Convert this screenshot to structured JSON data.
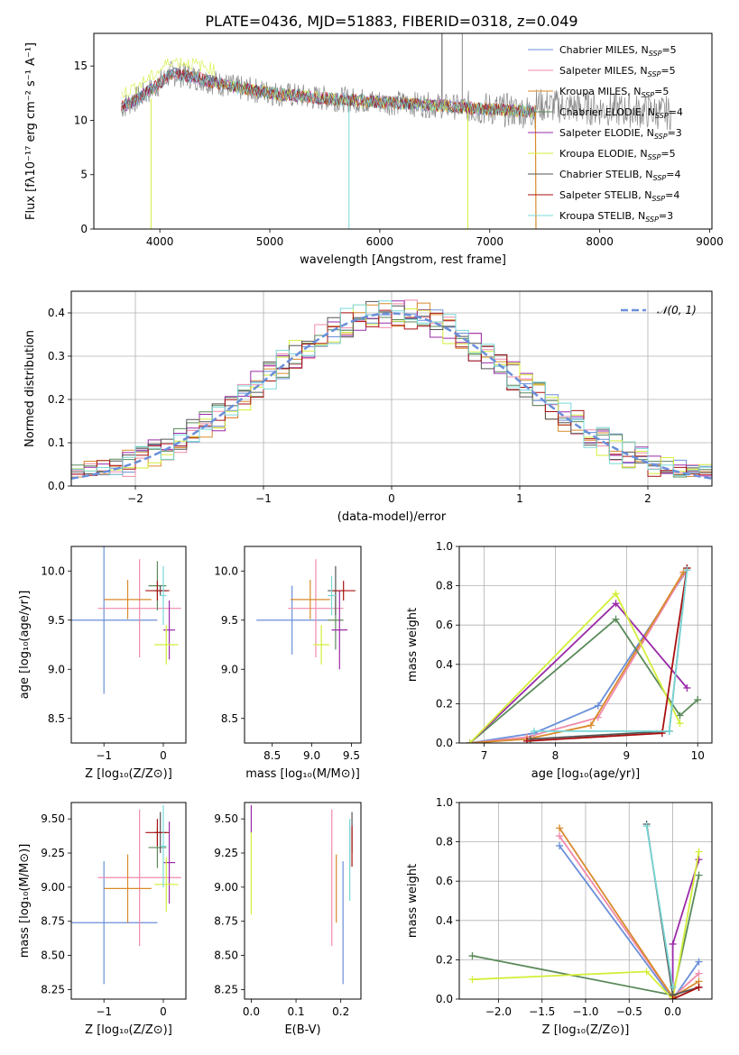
{
  "figure_title": "PLATE=0436, MJD=51883, FIBERID=0318, z=0.049",
  "colors": {
    "chabrier_miles": "#6a8fd9",
    "salpeter_miles": "#f08aaa",
    "kroupa_miles": "#d98a2b",
    "chabrier_elodie": "#5a8a5a",
    "salpeter_elodie": "#9a2aa8",
    "kroupa_elodie": "#d4ee3a",
    "chabrier_stelib": "#555555",
    "salpeter_stelib": "#aa1111",
    "kroupa_stelib": "#7ad8d8",
    "data_gray": "#888888",
    "gauss_line": "#6a8fd9"
  },
  "chart_data": [
    {
      "id": "spectrum",
      "type": "line",
      "xlabel": "wavelength [Angstrom, rest frame]",
      "ylabel": "Flux [fλ10⁻¹⁷ erg cm⁻² s⁻¹ A⁻¹]",
      "xlim": [
        3400,
        9020
      ],
      "ylim": [
        0,
        18
      ],
      "xticks": [
        "4000",
        "5000",
        "6000",
        "7000",
        "8000",
        "9000"
      ],
      "yticks": [
        "0",
        "5",
        "10",
        "15"
      ],
      "legend_position": "top-right",
      "legend": [
        {
          "pre": "Chabrier MILES, N",
          "sub": "SSP",
          "post": "=5",
          "color_key": "chabrier_miles"
        },
        {
          "pre": "Salpeter MILES, N",
          "sub": "SSP",
          "post": "=5",
          "color_key": "salpeter_miles"
        },
        {
          "pre": "Kroupa MILES, N",
          "sub": "SSP",
          "post": "=5",
          "color_key": "kroupa_miles"
        },
        {
          "pre": "Chabrier ELODIE, N",
          "sub": "SSP",
          "post": "=4",
          "color_key": "chabrier_elodie"
        },
        {
          "pre": "Salpeter ELODIE, N",
          "sub": "SSP",
          "post": "=3",
          "color_key": "salpeter_elodie"
        },
        {
          "pre": "Kroupa ELODIE, N",
          "sub": "SSP",
          "post": "=5",
          "color_key": "kroupa_elodie"
        },
        {
          "pre": "Chabrier STELIB, N",
          "sub": "SSP",
          "post": "=4",
          "color_key": "chabrier_stelib"
        },
        {
          "pre": "Salpeter STELIB, N",
          "sub": "SSP",
          "post": "=4",
          "color_key": "salpeter_stelib"
        },
        {
          "pre": "Kroupa STELIB, N",
          "sub": "SSP",
          "post": "=3",
          "color_key": "kroupa_stelib"
        }
      ],
      "continuum": [
        [
          3650,
          11.2
        ],
        [
          3800,
          12.0
        ],
        [
          3950,
          13.0
        ],
        [
          4100,
          14.3
        ],
        [
          4300,
          14.0
        ],
        [
          4500,
          13.5
        ],
        [
          4700,
          13.0
        ],
        [
          4900,
          12.7
        ],
        [
          5100,
          12.4
        ],
        [
          5400,
          12.1
        ],
        [
          5700,
          11.9
        ],
        [
          6000,
          11.7
        ],
        [
          6300,
          11.5
        ],
        [
          6600,
          11.3
        ],
        [
          6900,
          11.1
        ],
        [
          7200,
          10.9
        ],
        [
          7420,
          10.8
        ]
      ],
      "data_range": [
        3650,
        8650
      ],
      "model_end": 7420
    },
    {
      "id": "residuals",
      "type": "bar",
      "xlabel": "(data-model)/error",
      "ylabel": "Normed distribution",
      "xlim": [
        -2.5,
        2.5
      ],
      "ylim": [
        0,
        0.45
      ],
      "xticks": [
        "−2",
        "−1",
        "0",
        "1",
        "2"
      ],
      "yticks": [
        "0.0",
        "0.1",
        "0.2",
        "0.3",
        "0.4"
      ],
      "grid": true,
      "legend_position": "top-right",
      "legend": [
        {
          "label": "𝒩(0, 1)",
          "color_key": "gauss_line"
        }
      ],
      "bin_edges_start": -2.5,
      "bin_width": 0.1,
      "bins": 50
    },
    {
      "id": "age-vs-Z",
      "type": "scatter",
      "xlabel": "Z [log₁₀(Z/Z⊙)]",
      "ylabel": "age  [log₁₀(age/yr)]",
      "xlim": [
        -1.55,
        0.38
      ],
      "ylim": [
        8.25,
        10.25
      ],
      "xticks": [
        "−1",
        "0"
      ],
      "yticks": [
        "8.5",
        "9.0",
        "9.5",
        "10.0"
      ],
      "points": [
        {
          "x": -1.0,
          "y": 9.5,
          "xerr": 0.9,
          "yerr": 0.75,
          "color_key": "chabrier_miles"
        },
        {
          "x": -0.4,
          "y": 9.62,
          "xerr": 0.7,
          "yerr": 0.5,
          "color_key": "salpeter_miles"
        },
        {
          "x": -0.6,
          "y": 9.71,
          "xerr": 0.4,
          "yerr": 0.2,
          "color_key": "kroupa_miles"
        },
        {
          "x": -0.1,
          "y": 9.85,
          "xerr": 0.15,
          "yerr": 0.25,
          "color_key": "chabrier_elodie"
        },
        {
          "x": 0.1,
          "y": 9.4,
          "xerr": 0.1,
          "yerr": 0.3,
          "color_key": "salpeter_elodie"
        },
        {
          "x": 0.05,
          "y": 9.25,
          "xerr": 0.2,
          "yerr": 0.2,
          "color_key": "kroupa_elodie"
        },
        {
          "x": -0.05,
          "y": 9.8,
          "xerr": 0.1,
          "yerr": 0.05,
          "color_key": "chabrier_stelib"
        },
        {
          "x": -0.1,
          "y": 9.8,
          "xerr": 0.2,
          "yerr": 0.1,
          "color_key": "salpeter_stelib"
        },
        {
          "x": 0.0,
          "y": 9.75,
          "xerr": 0.05,
          "yerr": 0.3,
          "color_key": "kroupa_stelib"
        }
      ]
    },
    {
      "id": "age-vs-mass",
      "type": "scatter",
      "xlabel": "mass [log₁₀(M/M⊙)]",
      "ylabel": "",
      "xlim": [
        8.15,
        9.62
      ],
      "ylim": [
        8.25,
        10.25
      ],
      "xticks": [
        "8.5",
        "9.0",
        "9.5"
      ],
      "yticks": [
        "8.5",
        "9.0",
        "9.5",
        "10.0"
      ],
      "points": [
        {
          "x": 8.75,
          "y": 9.5,
          "xerr": 0.45,
          "yerr": 0.35,
          "color_key": "chabrier_miles"
        },
        {
          "x": 9.05,
          "y": 9.62,
          "xerr": 0.35,
          "yerr": 0.5,
          "color_key": "salpeter_miles"
        },
        {
          "x": 8.98,
          "y": 9.71,
          "xerr": 0.25,
          "yerr": 0.2,
          "color_key": "kroupa_miles"
        },
        {
          "x": 9.3,
          "y": 9.5,
          "xerr": 0.1,
          "yerr": 0.3,
          "color_key": "chabrier_elodie"
        },
        {
          "x": 9.35,
          "y": 9.4,
          "xerr": 0.1,
          "yerr": 0.4,
          "color_key": "salpeter_elodie"
        },
        {
          "x": 9.12,
          "y": 9.25,
          "xerr": 0.1,
          "yerr": 0.2,
          "color_key": "kroupa_elodie"
        },
        {
          "x": 9.3,
          "y": 9.8,
          "xerr": 0.1,
          "yerr": 0.25,
          "color_key": "chabrier_stelib"
        },
        {
          "x": 9.4,
          "y": 9.8,
          "xerr": 0.15,
          "yerr": 0.1,
          "color_key": "salpeter_stelib"
        },
        {
          "x": 9.25,
          "y": 9.75,
          "xerr": 0.05,
          "yerr": 0.2,
          "color_key": "kroupa_stelib"
        }
      ]
    },
    {
      "id": "weight-vs-age",
      "type": "line",
      "xlabel": "age  [log₁₀(age/yr)]",
      "ylabel": "mass weight",
      "xlim": [
        6.65,
        10.2
      ],
      "ylim": [
        0,
        1
      ],
      "xticks": [
        "7",
        "8",
        "9",
        "10"
      ],
      "yticks": [
        "0.0",
        "0.2",
        "0.4",
        "0.6",
        "0.8",
        "1.0"
      ],
      "grid": true,
      "series": [
        {
          "color_key": "chabrier_miles",
          "points": [
            [
              6.8,
              0.0
            ],
            [
              7.7,
              0.05
            ],
            [
              8.6,
              0.19
            ],
            [
              9.85,
              0.88
            ]
          ]
        },
        {
          "color_key": "salpeter_miles",
          "points": [
            [
              6.8,
              0.0
            ],
            [
              7.6,
              0.03
            ],
            [
              8.6,
              0.13
            ],
            [
              9.8,
              0.86
            ]
          ]
        },
        {
          "color_key": "kroupa_miles",
          "points": [
            [
              6.8,
              0.0
            ],
            [
              7.6,
              0.02
            ],
            [
              8.5,
              0.09
            ],
            [
              9.8,
              0.87
            ]
          ]
        },
        {
          "color_key": "chabrier_elodie",
          "points": [
            [
              6.8,
              0.0
            ],
            [
              8.85,
              0.63
            ],
            [
              9.75,
              0.14
            ],
            [
              10.0,
              0.22
            ]
          ]
        },
        {
          "color_key": "salpeter_elodie",
          "points": [
            [
              6.8,
              0.0
            ],
            [
              8.85,
              0.71
            ],
            [
              9.85,
              0.28
            ]
          ]
        },
        {
          "color_key": "kroupa_elodie",
          "points": [
            [
              6.8,
              0.0
            ],
            [
              8.85,
              0.76
            ],
            [
              9.75,
              0.1
            ]
          ]
        },
        {
          "color_key": "chabrier_stelib",
          "points": [
            [
              7.65,
              0.02
            ],
            [
              9.6,
              0.06
            ],
            [
              9.85,
              0.89
            ]
          ]
        },
        {
          "color_key": "salpeter_stelib",
          "points": [
            [
              7.6,
              0.01
            ],
            [
              9.5,
              0.05
            ],
            [
              9.85,
              0.89
            ]
          ]
        },
        {
          "color_key": "kroupa_stelib",
          "points": [
            [
              7.7,
              0.06
            ],
            [
              9.6,
              0.06
            ],
            [
              9.85,
              0.88
            ]
          ]
        }
      ]
    },
    {
      "id": "mass-vs-Z",
      "type": "scatter",
      "xlabel": "Z [log₁₀(Z/Z⊙)]",
      "ylabel": "mass [log₁₀(M/M⊙)]",
      "xlim": [
        -1.55,
        0.38
      ],
      "ylim": [
        8.18,
        9.62
      ],
      "xticks": [
        "−1",
        "0"
      ],
      "yticks": [
        "8.25",
        "8.50",
        "8.75",
        "9.00",
        "9.25",
        "9.50"
      ],
      "points": [
        {
          "x": -1.0,
          "y": 8.74,
          "xerr": 0.9,
          "yerr": 0.45,
          "color_key": "chabrier_miles"
        },
        {
          "x": -0.4,
          "y": 9.07,
          "xerr": 0.7,
          "yerr": 0.5,
          "color_key": "salpeter_miles"
        },
        {
          "x": -0.6,
          "y": 8.99,
          "xerr": 0.4,
          "yerr": 0.25,
          "color_key": "kroupa_miles"
        },
        {
          "x": -0.1,
          "y": 9.29,
          "xerr": 0.15,
          "yerr": 0.15,
          "color_key": "chabrier_elodie"
        },
        {
          "x": 0.1,
          "y": 9.18,
          "xerr": 0.1,
          "yerr": 0.3,
          "color_key": "salpeter_elodie"
        },
        {
          "x": 0.05,
          "y": 9.02,
          "xerr": 0.2,
          "yerr": 0.2,
          "color_key": "kroupa_elodie"
        },
        {
          "x": -0.05,
          "y": 9.4,
          "xerr": 0.1,
          "yerr": 0.15,
          "color_key": "chabrier_stelib"
        },
        {
          "x": -0.1,
          "y": 9.4,
          "xerr": 0.2,
          "yerr": 0.1,
          "color_key": "salpeter_stelib"
        },
        {
          "x": 0.0,
          "y": 9.3,
          "xerr": 0.05,
          "yerr": 0.3,
          "color_key": "kroupa_stelib"
        }
      ]
    },
    {
      "id": "mass-vs-EBV",
      "type": "scatter",
      "xlabel": "E(B-V)",
      "ylabel": "",
      "xlim": [
        -0.015,
        0.245
      ],
      "ylim": [
        8.18,
        9.62
      ],
      "xticks": [
        "0.0",
        "0.1",
        "0.2"
      ],
      "yticks": [
        "8.25",
        "8.50",
        "8.75",
        "9.00",
        "9.25",
        "9.50"
      ],
      "points": [
        {
          "x": 0.205,
          "y": 8.74,
          "xerr": 0.0,
          "yerr": 0.45,
          "color_key": "chabrier_miles"
        },
        {
          "x": 0.18,
          "y": 9.07,
          "xerr": 0.0,
          "yerr": 0.5,
          "color_key": "salpeter_miles"
        },
        {
          "x": 0.19,
          "y": 8.99,
          "xerr": 0.0,
          "yerr": 0.25,
          "color_key": "kroupa_miles"
        },
        {
          "x": 0.22,
          "y": 9.29,
          "xerr": 0.0,
          "yerr": 0.15,
          "color_key": "chabrier_elodie"
        },
        {
          "x": 0.0,
          "y": 9.5,
          "xerr": 0.0,
          "yerr": 0.1,
          "color_key": "salpeter_elodie"
        },
        {
          "x": 0.0,
          "y": 9.1,
          "xerr": 0.0,
          "yerr": 0.3,
          "color_key": "kroupa_elodie"
        },
        {
          "x": 0.225,
          "y": 9.4,
          "xerr": 0.0,
          "yerr": 0.15,
          "color_key": "chabrier_stelib"
        },
        {
          "x": 0.225,
          "y": 9.3,
          "xerr": 0.0,
          "yerr": 0.15,
          "color_key": "salpeter_stelib"
        },
        {
          "x": 0.22,
          "y": 9.2,
          "xerr": 0.0,
          "yerr": 0.3,
          "color_key": "kroupa_stelib"
        }
      ]
    },
    {
      "id": "weight-vs-Z",
      "type": "line",
      "xlabel": "Z [log₁₀(Z/Z⊙)]",
      "ylabel": "mass weight",
      "xlim": [
        -2.45,
        0.45
      ],
      "ylim": [
        0,
        1
      ],
      "xticks": [
        "−2.0",
        "−1.5",
        "−1.0",
        "−0.5",
        "0.0"
      ],
      "yticks": [
        "0.0",
        "0.2",
        "0.4",
        "0.6",
        "0.8",
        "1.0"
      ],
      "grid": true,
      "series": [
        {
          "color_key": "chabrier_miles",
          "points": [
            [
              -1.3,
              0.78
            ],
            [
              0.0,
              0.0
            ],
            [
              0.3,
              0.19
            ]
          ]
        },
        {
          "color_key": "salpeter_miles",
          "points": [
            [
              -1.3,
              0.83
            ],
            [
              0.0,
              0.01
            ],
            [
              0.3,
              0.13
            ]
          ]
        },
        {
          "color_key": "kroupa_miles",
          "points": [
            [
              -1.3,
              0.87
            ],
            [
              0.0,
              0.01
            ],
            [
              0.3,
              0.09
            ]
          ]
        },
        {
          "color_key": "chabrier_elodie",
          "points": [
            [
              -2.3,
              0.22
            ],
            [
              0.0,
              0.02
            ],
            [
              0.3,
              0.63
            ]
          ]
        },
        {
          "color_key": "salpeter_elodie",
          "points": [
            [
              0.0,
              0.0
            ],
            [
              0.0,
              0.28
            ],
            [
              0.3,
              0.71
            ]
          ]
        },
        {
          "color_key": "kroupa_elodie",
          "points": [
            [
              -2.3,
              0.1
            ],
            [
              -0.3,
              0.14
            ],
            [
              0.0,
              0.0
            ],
            [
              0.3,
              0.75
            ]
          ]
        },
        {
          "color_key": "chabrier_stelib",
          "points": [
            [
              -0.3,
              0.89
            ],
            [
              0.0,
              0.02
            ],
            [
              0.3,
              0.06
            ]
          ]
        },
        {
          "color_key": "salpeter_stelib",
          "points": [
            [
              0.0,
              0.0
            ],
            [
              0.3,
              0.06
            ]
          ]
        },
        {
          "color_key": "kroupa_stelib",
          "points": [
            [
              -0.3,
              0.88
            ],
            [
              0.0,
              0.06
            ]
          ]
        }
      ]
    }
  ]
}
